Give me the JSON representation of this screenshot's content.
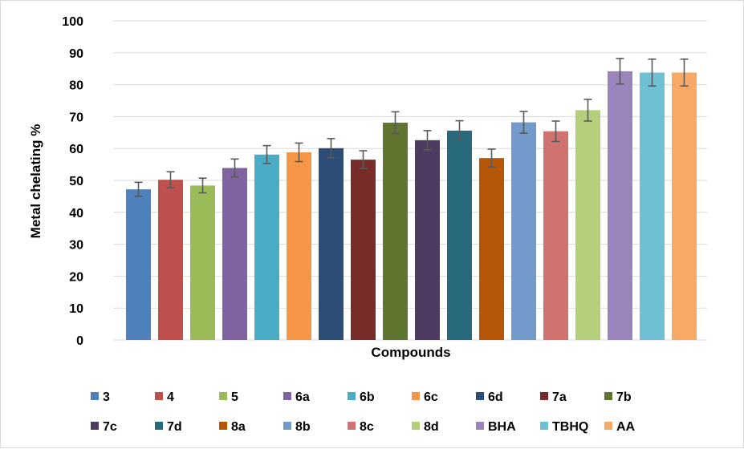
{
  "chart_data": {
    "type": "bar",
    "title": "",
    "xlabel": "Compounds",
    "ylabel": "Metal chelating %",
    "ylim": [
      0,
      100
    ],
    "yticks": [
      0,
      10,
      20,
      30,
      40,
      50,
      60,
      70,
      80,
      90,
      100
    ],
    "grid": true,
    "legend_position": "bottom",
    "categories": [
      "3",
      "4",
      "5",
      "6a",
      "6b",
      "6c",
      "6d",
      "7a",
      "7b",
      "7c",
      "7d",
      "8a",
      "8b",
      "8c",
      "8d",
      "BHA",
      "TBHQ",
      "AA"
    ],
    "values": [
      47.2,
      50.2,
      48.4,
      53.9,
      58.1,
      58.8,
      60.1,
      56.5,
      68.1,
      62.6,
      65.6,
      57.0,
      68.2,
      65.4,
      72.0,
      84.2,
      83.8,
      83.8
    ],
    "errors": [
      2.2,
      2.5,
      2.3,
      2.8,
      2.8,
      2.9,
      3.0,
      2.8,
      3.4,
      3.0,
      3.1,
      2.8,
      3.4,
      3.2,
      3.4,
      4.0,
      4.2,
      4.2
    ],
    "colors": [
      "#4f81bd",
      "#c0504d",
      "#9bbb59",
      "#8064a2",
      "#4bacc6",
      "#f79646",
      "#2c4d75",
      "#772c2a",
      "#5f7530",
      "#4d3b62",
      "#276a7c",
      "#b65708",
      "#729aca",
      "#d07370",
      "#b4cf7a",
      "#9b84bb",
      "#6fbfd5",
      "#f8a867"
    ]
  }
}
